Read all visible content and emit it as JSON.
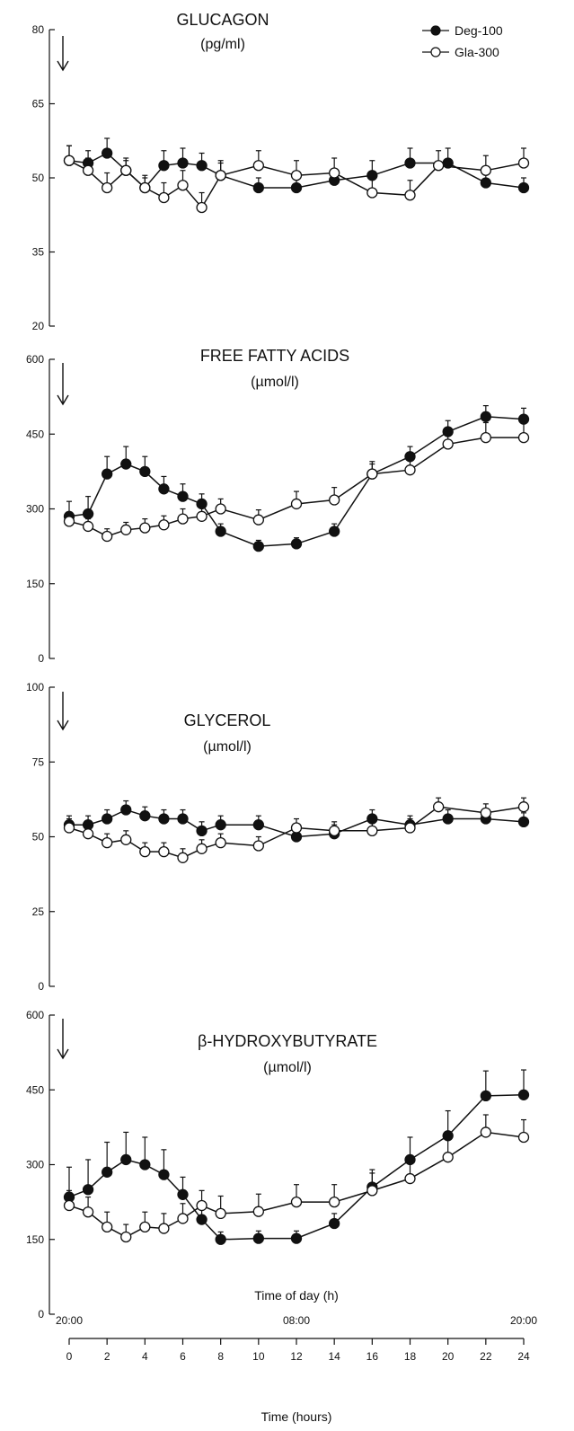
{
  "colors": {
    "ink": "#111111",
    "background": "#ffffff"
  },
  "legend": [
    {
      "name": "Deg-100",
      "marker": "filled-circle"
    },
    {
      "name": "Gla-300",
      "marker": "open-circle"
    }
  ],
  "chart_data": [
    {
      "type": "line",
      "title": "GLUCAGON",
      "unit": "(pg/ml)",
      "ylim": [
        20,
        80
      ],
      "yticks": [
        20,
        35,
        50,
        65,
        80
      ],
      "dose_arrow_at_x": 0,
      "series": [
        {
          "name": "Deg-100",
          "marker": "filled",
          "x": [
            0,
            1,
            2,
            3,
            4,
            5,
            6,
            7,
            8,
            10,
            12,
            14,
            16,
            18,
            20,
            22,
            24
          ],
          "y": [
            53.5,
            53,
            55,
            51.5,
            48,
            52.5,
            53,
            52.5,
            50.5,
            48,
            48,
            49.5,
            50.5,
            53,
            53,
            49,
            48
          ],
          "err": [
            3,
            2.5,
            3,
            2,
            2,
            3,
            3,
            2.5,
            2.5,
            2,
            2,
            2,
            3,
            3,
            3,
            2,
            2
          ]
        },
        {
          "name": "Gla-300",
          "marker": "open",
          "x": [
            0,
            1,
            2,
            3,
            4,
            5,
            6,
            7,
            8,
            10,
            12,
            14,
            16,
            18,
            19.5,
            22,
            24
          ],
          "y": [
            53.5,
            51.5,
            48,
            51.5,
            48,
            46,
            48.5,
            44,
            50.5,
            52.5,
            50.5,
            51,
            47,
            46.5,
            52.5,
            51.5,
            53
          ],
          "err": [
            3,
            2.5,
            3,
            2.5,
            2.5,
            3,
            3,
            3,
            3,
            3,
            3,
            3,
            3,
            3,
            3,
            3,
            3
          ]
        }
      ]
    },
    {
      "type": "line",
      "title": "FREE FATTY ACIDS",
      "unit": "(µmol/l)",
      "ylim": [
        0,
        600
      ],
      "yticks": [
        0,
        150,
        300,
        450,
        600
      ],
      "dose_arrow_at_x": 0,
      "series": [
        {
          "name": "Deg-100",
          "marker": "filled",
          "x": [
            0,
            1,
            2,
            3,
            4,
            5,
            6,
            7,
            8,
            10,
            12,
            14,
            16,
            18,
            20,
            22,
            24
          ],
          "y": [
            285,
            290,
            370,
            390,
            375,
            340,
            325,
            310,
            255,
            225,
            230,
            255,
            370,
            405,
            455,
            485,
            480
          ],
          "err": [
            30,
            35,
            35,
            35,
            30,
            25,
            25,
            20,
            15,
            12,
            12,
            15,
            20,
            20,
            22,
            22,
            22
          ]
        },
        {
          "name": "Gla-300",
          "marker": "open",
          "x": [
            0,
            1,
            2,
            3,
            4,
            5,
            6,
            7,
            8,
            10,
            12,
            14,
            16,
            18,
            20,
            22,
            24
          ],
          "y": [
            275,
            265,
            245,
            258,
            262,
            268,
            280,
            285,
            300,
            278,
            310,
            318,
            370,
            378,
            430,
            443,
            443
          ],
          "err": [
            15,
            15,
            15,
            15,
            18,
            18,
            20,
            20,
            20,
            20,
            25,
            25,
            25,
            25,
            30,
            30,
            30
          ]
        }
      ]
    },
    {
      "type": "line",
      "title": "GLYCEROL",
      "unit": "(µmol/l)",
      "ylim": [
        0,
        100
      ],
      "yticks": [
        0,
        25,
        50,
        75,
        100
      ],
      "dose_arrow_at_x": 0,
      "series": [
        {
          "name": "Deg-100",
          "marker": "filled",
          "x": [
            0,
            1,
            2,
            3,
            4,
            5,
            6,
            7,
            8,
            10,
            12,
            14,
            16,
            18,
            20,
            22,
            24
          ],
          "y": [
            54,
            54,
            56,
            59,
            57,
            56,
            56,
            52,
            54,
            54,
            50,
            51,
            56,
            54,
            56,
            56,
            55
          ],
          "err": [
            3,
            3,
            3,
            3,
            3,
            3,
            3,
            3,
            3,
            3,
            3,
            3,
            3,
            3,
            3,
            3,
            3
          ]
        },
        {
          "name": "Gla-300",
          "marker": "open",
          "x": [
            0,
            1,
            2,
            3,
            4,
            5,
            6,
            7,
            8,
            10,
            12,
            14,
            16,
            18,
            19.5,
            22,
            24
          ],
          "y": [
            53,
            51,
            48,
            49,
            45,
            45,
            43,
            46,
            48,
            47,
            53,
            52,
            52,
            53,
            60,
            58,
            60
          ],
          "err": [
            3,
            3,
            3,
            3,
            3,
            3,
            3,
            3,
            3,
            3,
            3,
            3,
            3,
            3,
            3,
            3,
            3
          ]
        }
      ]
    },
    {
      "type": "line",
      "title": "β-HYDROXYBUTYRATE",
      "unit": "(µmol/l)",
      "ylim": [
        0,
        600
      ],
      "yticks": [
        0,
        150,
        300,
        450,
        600
      ],
      "dose_arrow_at_x": 0,
      "series": [
        {
          "name": "Deg-100",
          "marker": "filled",
          "x": [
            0,
            1,
            2,
            3,
            4,
            5,
            6,
            7,
            8,
            10,
            12,
            14,
            16,
            18,
            20,
            22,
            24
          ],
          "y": [
            235,
            250,
            285,
            310,
            300,
            280,
            240,
            190,
            150,
            152,
            152,
            182,
            255,
            310,
            358,
            438,
            440
          ],
          "err": [
            60,
            60,
            60,
            55,
            55,
            50,
            35,
            25,
            15,
            15,
            15,
            20,
            35,
            45,
            50,
            50,
            50
          ]
        },
        {
          "name": "Gla-300",
          "marker": "open",
          "x": [
            0,
            1,
            2,
            3,
            4,
            5,
            6,
            7,
            8,
            10,
            12,
            14,
            16,
            18,
            20,
            22,
            24
          ],
          "y": [
            218,
            205,
            175,
            155,
            175,
            172,
            192,
            218,
            202,
            206,
            225,
            225,
            248,
            272,
            315,
            365,
            355
          ],
          "err": [
            30,
            30,
            30,
            25,
            30,
            30,
            30,
            30,
            35,
            35,
            35,
            35,
            35,
            35,
            35,
            35,
            35
          ]
        }
      ]
    }
  ],
  "x_axis": {
    "xlim": [
      0,
      24
    ],
    "ticks": [
      0,
      2,
      4,
      6,
      8,
      10,
      12,
      14,
      16,
      18,
      20,
      22,
      24
    ],
    "title": "Time (hours)",
    "time_of_day_title": "Time of day (h)",
    "time_of_day_labels": [
      {
        "x": 0,
        "label": "20:00"
      },
      {
        "x": 12,
        "label": "08:00"
      },
      {
        "x": 24,
        "label": "20:00"
      }
    ]
  }
}
